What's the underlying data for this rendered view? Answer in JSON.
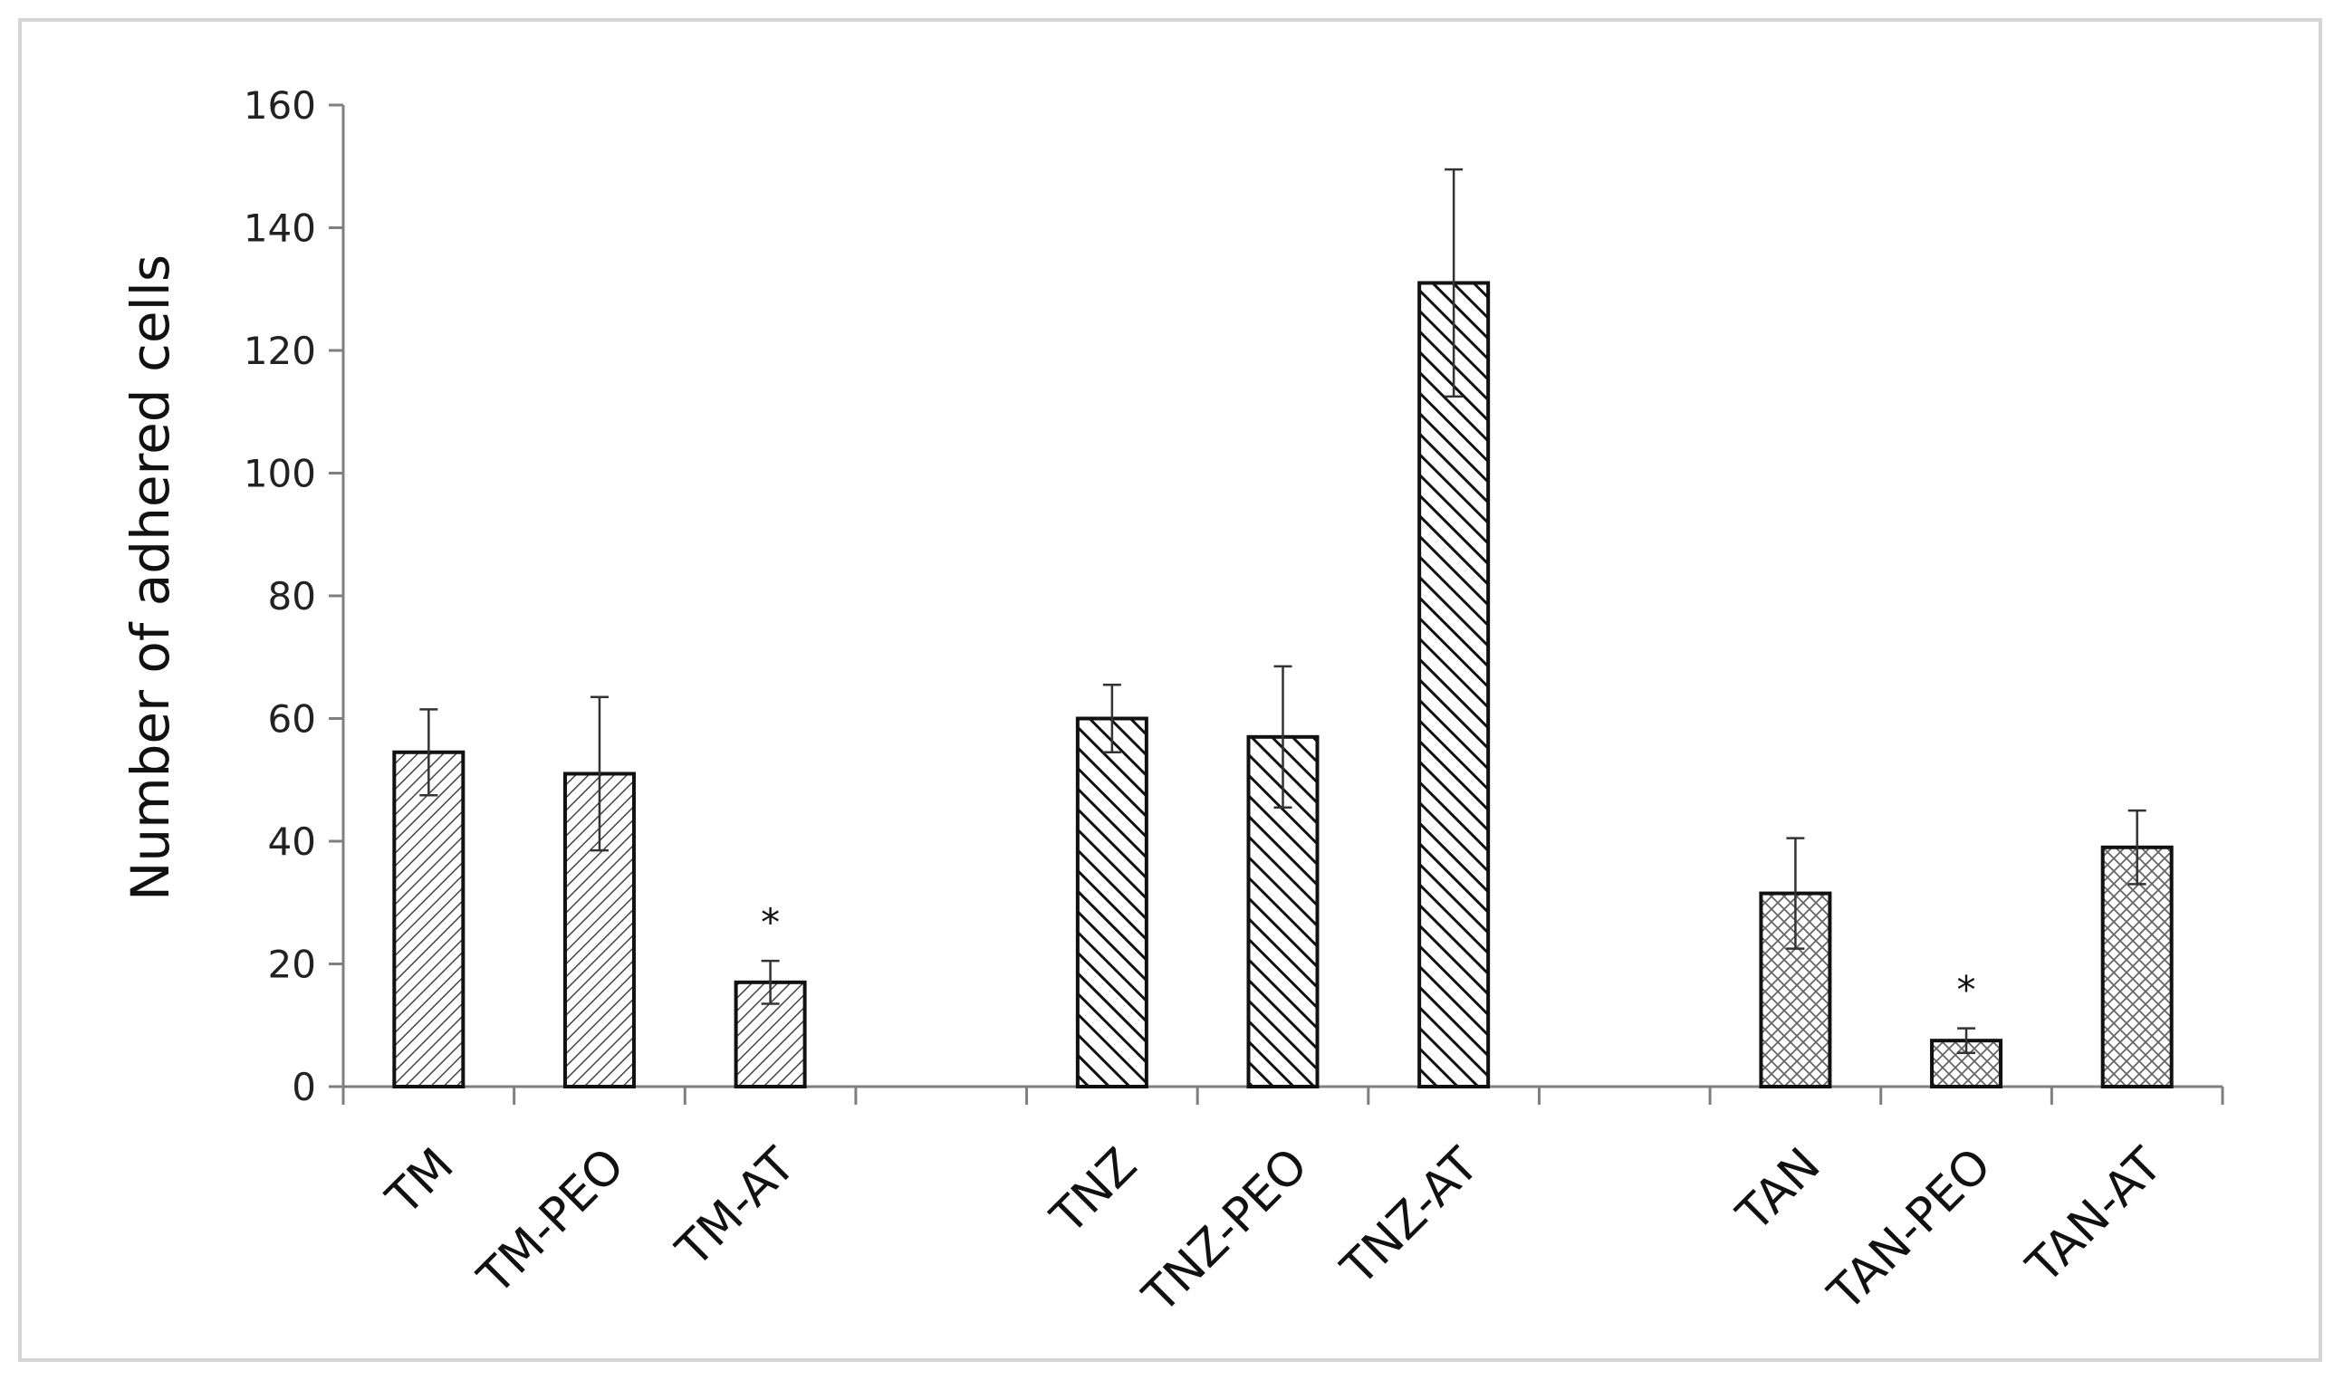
{
  "chart_data": {
    "type": "bar",
    "ylabel": "Number of adhered cells",
    "xlabel": "",
    "ylim": [
      0,
      160
    ],
    "yticks": [
      0,
      20,
      40,
      60,
      80,
      100,
      120,
      140,
      160
    ],
    "grid": false,
    "categories": [
      "TM",
      "TM-PEO",
      "TM-AT",
      "",
      "TNZ",
      "TNZ-PEO",
      "TNZ-AT",
      "",
      "TAN",
      "TAN-PEO",
      "TAN-AT"
    ],
    "values": [
      54.5,
      51,
      17,
      null,
      60,
      57,
      131,
      null,
      31.5,
      7.5,
      39
    ],
    "errors": [
      7,
      12.5,
      3.5,
      null,
      5.5,
      11.5,
      18.5,
      null,
      9,
      2,
      6
    ],
    "annotations": [
      "",
      "",
      "*",
      "",
      "",
      "",
      "",
      "",
      "",
      "*",
      ""
    ],
    "patterns": [
      "fine-diagonal",
      "fine-diagonal",
      "fine-diagonal",
      "",
      "bold-diagonal",
      "bold-diagonal",
      "bold-diagonal",
      "",
      "crosshatch",
      "crosshatch",
      "crosshatch"
    ],
    "colors": {
      "bar_fill": "#ffffff",
      "bar_stroke": "#111111",
      "axis": "#7f7f7f",
      "frame": "#d6d6d6",
      "error_bar": "#333333"
    }
  }
}
